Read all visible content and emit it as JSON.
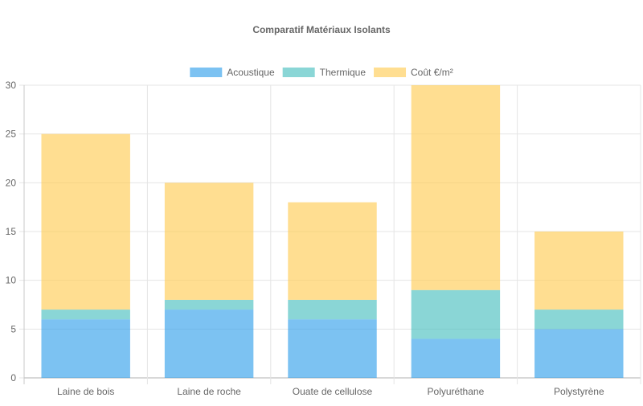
{
  "chart_data": {
    "type": "bar",
    "title": "Comparatif Matériaux Isolants",
    "categories": [
      "Laine de bois",
      "Laine de roche",
      "Ouate de cellulose",
      "Polyuréthane",
      "Polystyrène"
    ],
    "series": [
      {
        "name": "Acoustique",
        "values": [
          6,
          7,
          6,
          4,
          5
        ],
        "color": "#36a2eb"
      },
      {
        "name": "Thermique",
        "values": [
          1,
          1,
          2,
          5,
          2
        ],
        "color": "#4bc0c0"
      },
      {
        "name": "Coût €/m²",
        "values": [
          18,
          12,
          10,
          21,
          8
        ],
        "color": "#ffcd56"
      }
    ],
    "stacked": true,
    "ylim": [
      0,
      30
    ],
    "yticks": [
      0,
      5,
      10,
      15,
      20,
      25,
      30
    ],
    "grid": true,
    "legend_position": "top"
  }
}
